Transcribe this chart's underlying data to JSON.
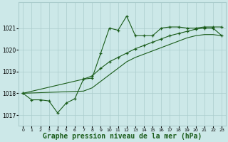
{
  "background_color": "#cce8e8",
  "line_color": "#1a5c1a",
  "grid_color": "#aacccc",
  "xlabel": "Graphe pression niveau de la mer (hPa)",
  "xlabel_fontsize": 7,
  "xlim": [
    -0.5,
    23.5
  ],
  "ylim": [
    1016.5,
    1022.2
  ],
  "yticks": [
    1017,
    1018,
    1019,
    1020,
    1021
  ],
  "xticks": [
    0,
    1,
    2,
    3,
    4,
    5,
    6,
    7,
    8,
    9,
    10,
    11,
    12,
    13,
    14,
    15,
    16,
    17,
    18,
    19,
    20,
    21,
    22,
    23
  ],
  "series": [
    {
      "x": [
        0,
        1,
        2,
        3,
        4,
        5,
        6,
        7,
        8,
        9,
        10,
        11,
        12,
        13,
        14,
        15,
        16,
        17,
        18,
        19,
        20,
        21,
        22,
        23
      ],
      "y": [
        1018.0,
        1017.7,
        1017.7,
        1017.65,
        1017.1,
        1017.55,
        1017.75,
        1018.65,
        1018.7,
        1019.85,
        1021.0,
        1020.9,
        1021.55,
        1020.65,
        1020.65,
        1020.65,
        1021.0,
        1021.05,
        1021.05,
        1021.0,
        1021.0,
        1021.05,
        1021.05,
        1021.05
      ],
      "marker": true,
      "linestyle": "-"
    },
    {
      "x": [
        0,
        7,
        8,
        9,
        10,
        11,
        12,
        13,
        14,
        15,
        16,
        17,
        18,
        19,
        20,
        21,
        22,
        23
      ],
      "y": [
        1018.0,
        1018.65,
        1018.8,
        1019.15,
        1019.45,
        1019.65,
        1019.85,
        1020.05,
        1020.2,
        1020.35,
        1020.5,
        1020.65,
        1020.75,
        1020.85,
        1020.95,
        1021.0,
        1021.0,
        1020.65
      ],
      "marker": true,
      "linestyle": "-"
    },
    {
      "x": [
        0,
        7,
        8,
        9,
        10,
        11,
        12,
        13,
        14,
        15,
        16,
        17,
        18,
        19,
        20,
        21,
        22,
        23
      ],
      "y": [
        1018.0,
        1018.1,
        1018.25,
        1018.55,
        1018.85,
        1019.15,
        1019.45,
        1019.65,
        1019.8,
        1019.95,
        1020.1,
        1020.25,
        1020.4,
        1020.55,
        1020.65,
        1020.7,
        1020.7,
        1020.65
      ],
      "marker": false,
      "linestyle": "-"
    }
  ]
}
